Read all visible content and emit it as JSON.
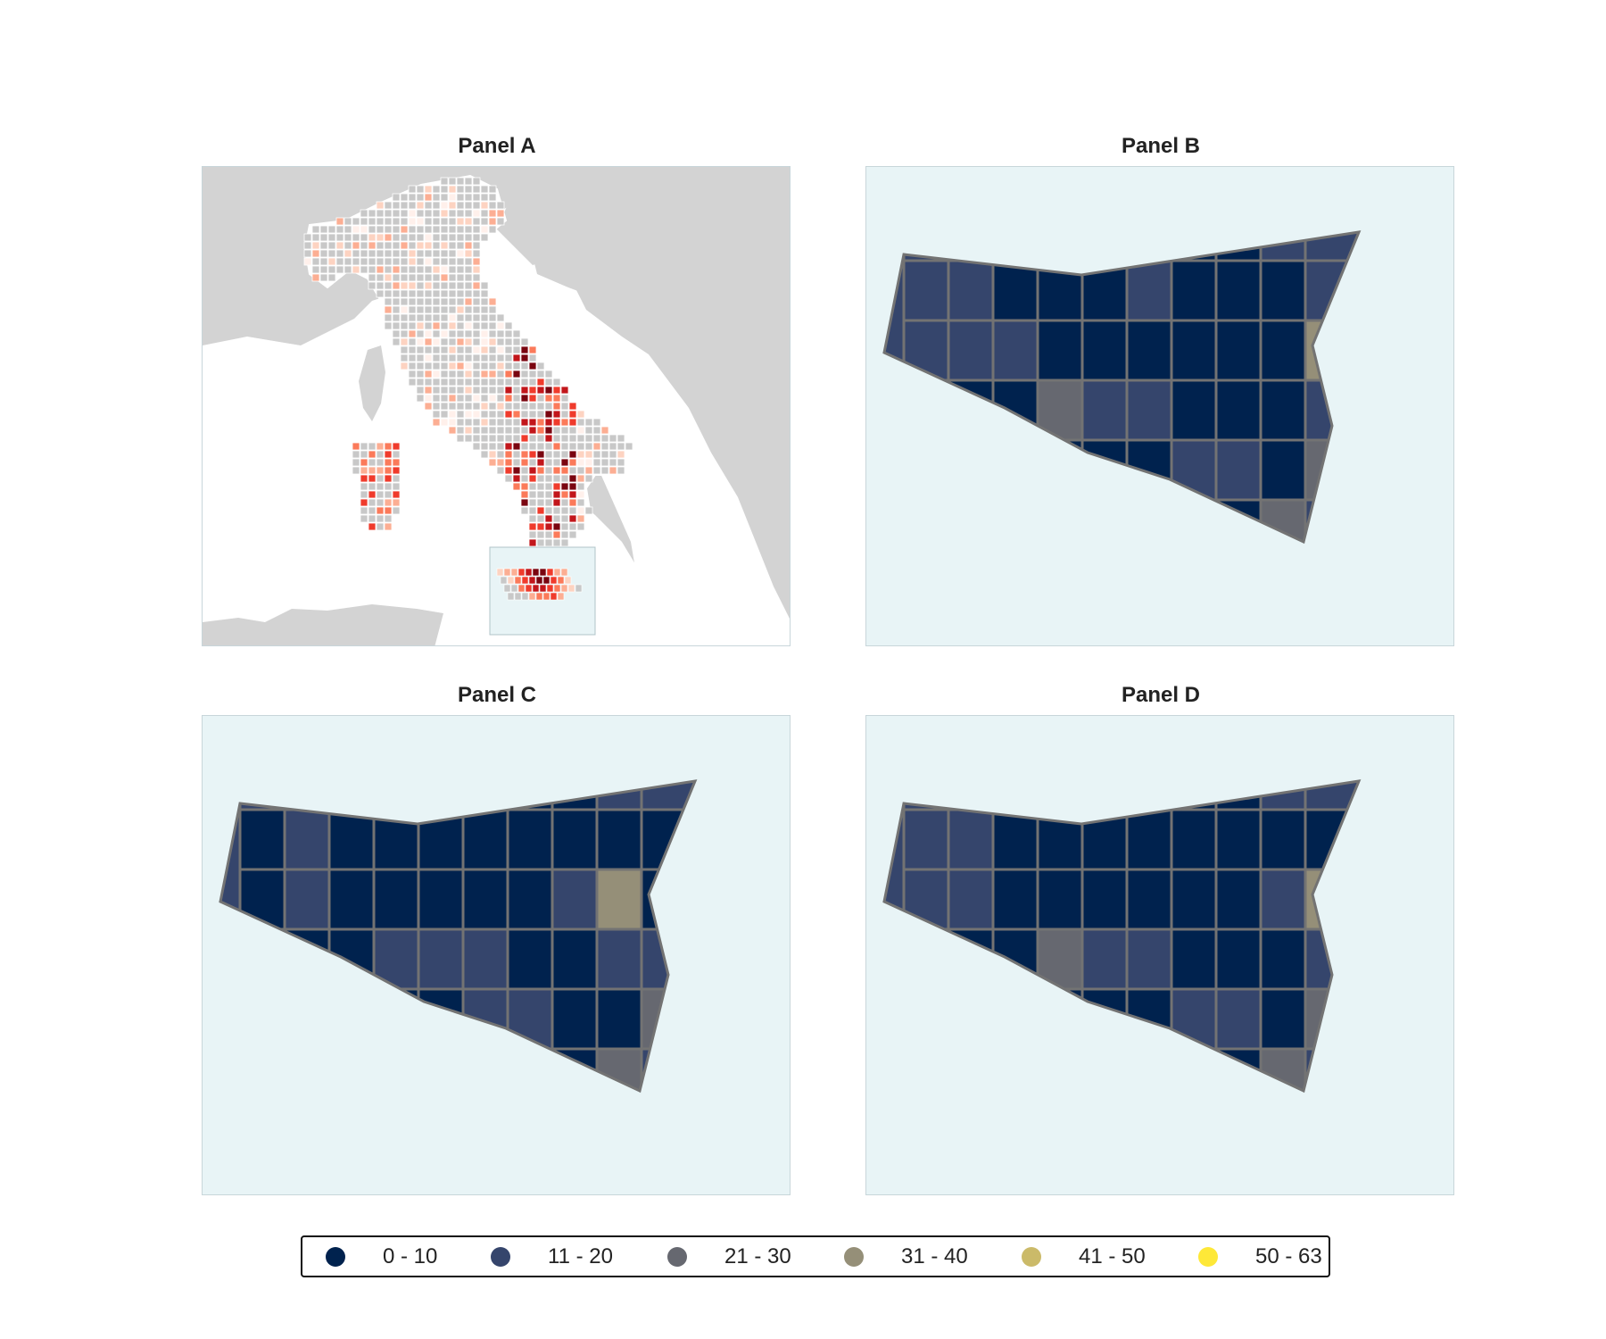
{
  "panels": [
    {
      "id": "A",
      "title": "Panel A"
    },
    {
      "id": "B",
      "title": "Panel B"
    },
    {
      "id": "C",
      "title": "Panel C"
    },
    {
      "id": "D",
      "title": "Panel D"
    }
  ],
  "colors": {
    "sea_inset": "#e8f4f6",
    "land_background": "#d3d3d3",
    "cell_border": "#737373",
    "panelA_empty_cell": "#c8c8c8",
    "panelA_scale": [
      "#fff0eb",
      "#fdd3c1",
      "#fcae93",
      "#fb7a5a",
      "#ef3b2c",
      "#c2161b",
      "#7a0510"
    ]
  },
  "legend": {
    "items": [
      {
        "label": "0 - 10",
        "color": "#00224e"
      },
      {
        "label": "11 - 20",
        "color": "#35456c"
      },
      {
        "label": "21 - 30",
        "color": "#666870"
      },
      {
        "label": "31 - 40",
        "color": "#958f78"
      },
      {
        "label": "41 - 50",
        "color": "#cbba69"
      },
      {
        "label": "50 - 63",
        "color": "#fee838"
      }
    ]
  },
  "sicily_grids": {
    "class_rows_B": [
      "1000310011",
      "1100010001",
      "1110000003",
      "0002110001",
      "0000001102",
      "0000000021",
      "0000000001"
    ],
    "class_rows_C": [
      "1001200011",
      "0100000000",
      "0100000130",
      "0001110011",
      "0000011002",
      "0000000021",
      "0000000001"
    ],
    "class_rows_D": [
      "1001200011",
      "1100000000",
      "1100000013",
      "0002110001",
      "0000001102",
      "0000000021",
      "0000000001"
    ]
  }
}
